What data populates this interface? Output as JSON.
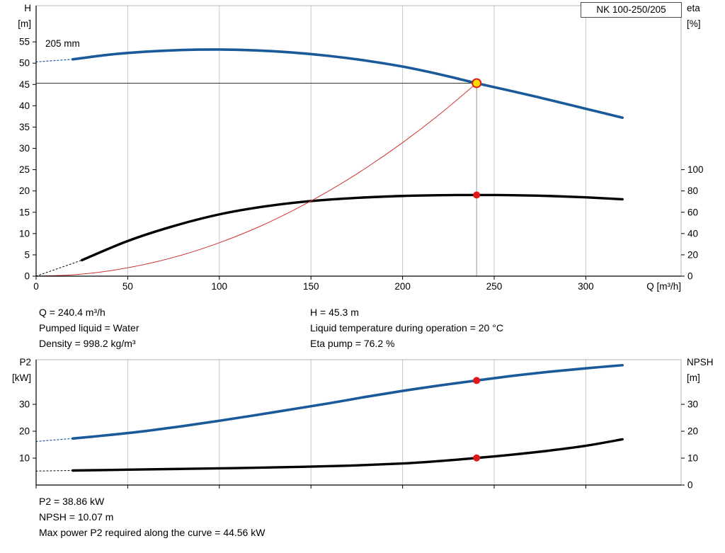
{
  "colors": {
    "curve_blue": "#1a5a9a",
    "curve_black": "#000000",
    "system_curve_red": "#cc3333",
    "duty_point_fill": "#ffdc00",
    "duty_point_ring": "#d42020",
    "duty_dot_red": "#e01818",
    "grid": "#c8c8c8"
  },
  "operating_point_info": {
    "col1": [
      "Q = 240.4 m³/h",
      "Pumped liquid = Water",
      "Density = 998.2 kg/m³"
    ],
    "col2": [
      "H = 45.3 m",
      "Liquid temperature during operation = 20 °C",
      "Eta pump = 76.2 %"
    ]
  },
  "bottom_info": [
    "P2 = 38.86 kW",
    "NPSH = 10.07 m",
    "Max power P2 required along the curve = 44.56 kW"
  ],
  "chart_data": [
    {
      "type": "line",
      "name": "hq-eta-chart",
      "title": "NK 100-250/205",
      "xlabel": "Q [m³/h]",
      "ylabel_left": [
        "H",
        "[m]"
      ],
      "ylabel_right": [
        "eta",
        "[%]"
      ],
      "xlim": [
        0,
        352
      ],
      "ylim_left": [
        0,
        63.5
      ],
      "ylim_right": [
        0,
        254
      ],
      "x_ticks": [
        0,
        50,
        100,
        150,
        200,
        250,
        300
      ],
      "x_tick_labels": true,
      "y_ticks_left": [
        0,
        5,
        10,
        15,
        20,
        25,
        30,
        35,
        40,
        45,
        50,
        55
      ],
      "y_ticks_right": [
        0,
        20,
        40,
        60,
        80,
        100
      ],
      "grid": "vertical",
      "series": [
        {
          "name": "head-curve-dashed",
          "color": "#1a5a9a",
          "width": 1.2,
          "dash": "2 3",
          "points": [
            [
              0,
              50.3
            ],
            [
              20,
              50.9
            ]
          ]
        },
        {
          "name": "head-curve",
          "color": "#1a5a9a",
          "width": 3.6,
          "smooth": true,
          "points": [
            [
              20,
              50.9
            ],
            [
              40,
              52.0
            ],
            [
              60,
              52.7
            ],
            [
              80,
              53.1
            ],
            [
              100,
              53.2
            ],
            [
              120,
              53.0
            ],
            [
              140,
              52.5
            ],
            [
              160,
              51.7
            ],
            [
              180,
              50.6
            ],
            [
              200,
              49.2
            ],
            [
              220,
              47.4
            ],
            [
              240.4,
              45.3
            ],
            [
              260,
              43.4
            ],
            [
              280,
              41.4
            ],
            [
              300,
              39.3
            ],
            [
              320,
              37.2
            ]
          ]
        },
        {
          "name": "eta-curve-dashed",
          "color": "#000000",
          "width": 1,
          "dash": "2 3",
          "axis": "right",
          "points": [
            [
              0,
              0
            ],
            [
              25,
              15
            ]
          ]
        },
        {
          "name": "eta-curve",
          "color": "#000000",
          "width": 3.4,
          "axis": "right",
          "smooth": true,
          "points": [
            [
              25,
              15
            ],
            [
              50,
              33
            ],
            [
              75,
              47
            ],
            [
              100,
              58
            ],
            [
              125,
              65.5
            ],
            [
              150,
              70.5
            ],
            [
              175,
              73.5
            ],
            [
              200,
              75.3
            ],
            [
              220,
              76.0
            ],
            [
              240.4,
              76.2
            ],
            [
              260,
              76.0
            ],
            [
              280,
              75.3
            ],
            [
              300,
              74.0
            ],
            [
              320,
              72.2
            ]
          ]
        },
        {
          "name": "system-curve",
          "color": "#cc3333",
          "width": 1,
          "smooth": true,
          "points": [
            [
              0,
              0
            ],
            [
              20,
              0.31
            ],
            [
              40,
              1.25
            ],
            [
              60,
              2.82
            ],
            [
              80,
              5.01
            ],
            [
              100,
              7.84
            ],
            [
              120,
              11.28
            ],
            [
              140,
              15.36
            ],
            [
              160,
              20.06
            ],
            [
              180,
              25.39
            ],
            [
              200,
              31.34
            ],
            [
              220,
              37.92
            ],
            [
              240.4,
              45.3
            ]
          ]
        }
      ],
      "ref_lines": [
        {
          "name": "duty-head-line",
          "from": [
            0,
            45.3
          ],
          "to": [
            240.4,
            45.3
          ],
          "color": "#333333",
          "width": 1
        },
        {
          "name": "duty-flow-line",
          "from": [
            240.4,
            0
          ],
          "to": [
            240.4,
            45.3
          ],
          "color": "#999999",
          "width": 1
        }
      ],
      "markers": [
        {
          "name": "duty-point",
          "x": 240.4,
          "y": 45.3,
          "r": 6,
          "fill": "#ffdc00",
          "stroke": "#d42020",
          "stroke_width": 2,
          "interactable": true
        },
        {
          "name": "eta-duty-point",
          "x": 240.4,
          "y": 76.2,
          "axis": "right",
          "r": 5,
          "fill": "#e01818",
          "interactable": false
        }
      ],
      "annotations": [
        {
          "name": "impeller-size-label",
          "text": "205 mm",
          "x": 5,
          "y": 53.9
        }
      ]
    },
    {
      "type": "line",
      "name": "p2-npsh-chart",
      "title": "",
      "xlabel": "",
      "ylabel_left": [
        "P2",
        "[kW]"
      ],
      "ylabel_right": [
        "NPSH",
        "[m]"
      ],
      "xlim": [
        0,
        352
      ],
      "ylim_left": [
        0,
        46.6
      ],
      "ylim_right": [
        0,
        46.6
      ],
      "x_ticks": [
        0,
        50,
        100,
        150,
        200,
        250,
        300
      ],
      "x_tick_labels": false,
      "y_ticks_left": [
        10,
        20,
        30
      ],
      "y_ticks_right": [
        0,
        10,
        20,
        30
      ],
      "grid": "vertical",
      "series": [
        {
          "name": "p2-curve-dashed",
          "color": "#1a5a9a",
          "width": 1.2,
          "dash": "2 3",
          "points": [
            [
              0,
              16.2
            ],
            [
              20,
              17.3
            ]
          ]
        },
        {
          "name": "p2-curve",
          "color": "#1a5a9a",
          "width": 3.6,
          "smooth": true,
          "points": [
            [
              20,
              17.3
            ],
            [
              40,
              18.6
            ],
            [
              60,
              20.1
            ],
            [
              80,
              21.9
            ],
            [
              100,
              23.9
            ],
            [
              120,
              26.0
            ],
            [
              140,
              28.2
            ],
            [
              160,
              30.4
            ],
            [
              180,
              32.8
            ],
            [
              200,
              35.0
            ],
            [
              220,
              37.0
            ],
            [
              240.4,
              38.86
            ],
            [
              260,
              40.6
            ],
            [
              280,
              42.1
            ],
            [
              300,
              43.4
            ],
            [
              320,
              44.56
            ]
          ]
        },
        {
          "name": "npsh-curve-dashed",
          "color": "#000000",
          "width": 1,
          "dash": "2 3",
          "points": [
            [
              0,
              5.2
            ],
            [
              20,
              5.4
            ]
          ]
        },
        {
          "name": "npsh-curve",
          "color": "#000000",
          "width": 3.4,
          "smooth": true,
          "points": [
            [
              20,
              5.4
            ],
            [
              50,
              5.7
            ],
            [
              80,
              6.0
            ],
            [
              110,
              6.3
            ],
            [
              140,
              6.7
            ],
            [
              170,
              7.2
            ],
            [
              200,
              8.0
            ],
            [
              220,
              8.9
            ],
            [
              240.4,
              10.07
            ],
            [
              260,
              11.3
            ],
            [
              280,
              12.8
            ],
            [
              300,
              14.6
            ],
            [
              320,
              17.0
            ]
          ]
        }
      ],
      "ref_lines": [],
      "markers": [
        {
          "name": "p2-duty-point",
          "x": 240.4,
          "y": 38.86,
          "r": 5,
          "fill": "#e01818",
          "interactable": false
        },
        {
          "name": "npsh-duty-point",
          "x": 240.4,
          "y": 10.07,
          "r": 5,
          "fill": "#e01818",
          "interactable": false
        }
      ],
      "annotations": []
    }
  ]
}
